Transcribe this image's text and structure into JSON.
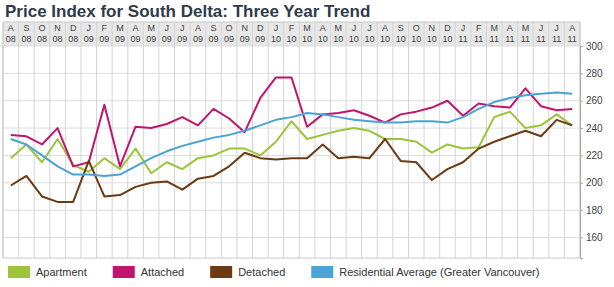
{
  "chart_data": {
    "type": "line",
    "title": "Price Index for South Delta: Three Year Trend",
    "categories": [
      "A\n08",
      "S\n08",
      "O\n08",
      "N\n08",
      "D\n08",
      "J\n09",
      "F\n09",
      "M\n09",
      "A\n09",
      "M\n09",
      "J\n09",
      "J\n09",
      "A\n09",
      "S\n09",
      "O\n09",
      "N\n09",
      "D\n09",
      "J\n10",
      "F\n10",
      "M\n10",
      "A\n10",
      "M\n10",
      "J\n10",
      "J\n10",
      "A\n10",
      "S\n10",
      "O\n10",
      "N\n10",
      "D\n10",
      "J\n11",
      "F\n11",
      "M\n11",
      "A\n11",
      "M\n11",
      "J\n11",
      "J\n11",
      "A\n11"
    ],
    "series": [
      {
        "name": "Apartment",
        "color": "#9cc43a",
        "values": [
          218,
          228,
          215,
          232,
          213,
          208,
          218,
          210,
          225,
          207,
          215,
          210,
          218,
          220,
          225,
          225,
          220,
          230,
          245,
          232,
          235,
          238,
          240,
          238,
          232,
          232,
          230,
          222,
          228,
          225,
          226,
          248,
          252,
          240,
          242,
          250,
          242
        ]
      },
      {
        "name": "Attached",
        "color": "#c0146e",
        "values": [
          235,
          234,
          228,
          240,
          212,
          215,
          257,
          212,
          241,
          240,
          243,
          248,
          242,
          254,
          247,
          237,
          262,
          277,
          277,
          241,
          250,
          251,
          253,
          249,
          244,
          250,
          252,
          255,
          260,
          249,
          258,
          256,
          255,
          269,
          256,
          253,
          254
        ]
      },
      {
        "name": "Detached",
        "color": "#6b3a13",
        "values": [
          198,
          205,
          190,
          186,
          186,
          216,
          190,
          191,
          197,
          200,
          201,
          195,
          203,
          205,
          212,
          222,
          218,
          217,
          218,
          218,
          228,
          218,
          219,
          218,
          232,
          216,
          215,
          202,
          210,
          215,
          225,
          230,
          234,
          238,
          234,
          246,
          242
        ]
      },
      {
        "name": "Residential Average (Greater Vancouver)",
        "color": "#4aa3d4",
        "values": [
          232,
          228,
          220,
          212,
          206,
          206,
          205,
          206,
          212,
          218,
          223,
          227,
          230,
          233,
          235,
          238,
          242,
          246,
          248,
          251,
          250,
          248,
          246,
          245,
          244,
          244,
          245,
          245,
          244,
          248,
          254,
          259,
          262,
          264,
          265,
          266,
          265
        ]
      }
    ],
    "ylim": [
      145,
      300
    ],
    "yticks": [
      160,
      180,
      200,
      220,
      240,
      260,
      280,
      300
    ],
    "grid": true,
    "legend": "bottom"
  }
}
